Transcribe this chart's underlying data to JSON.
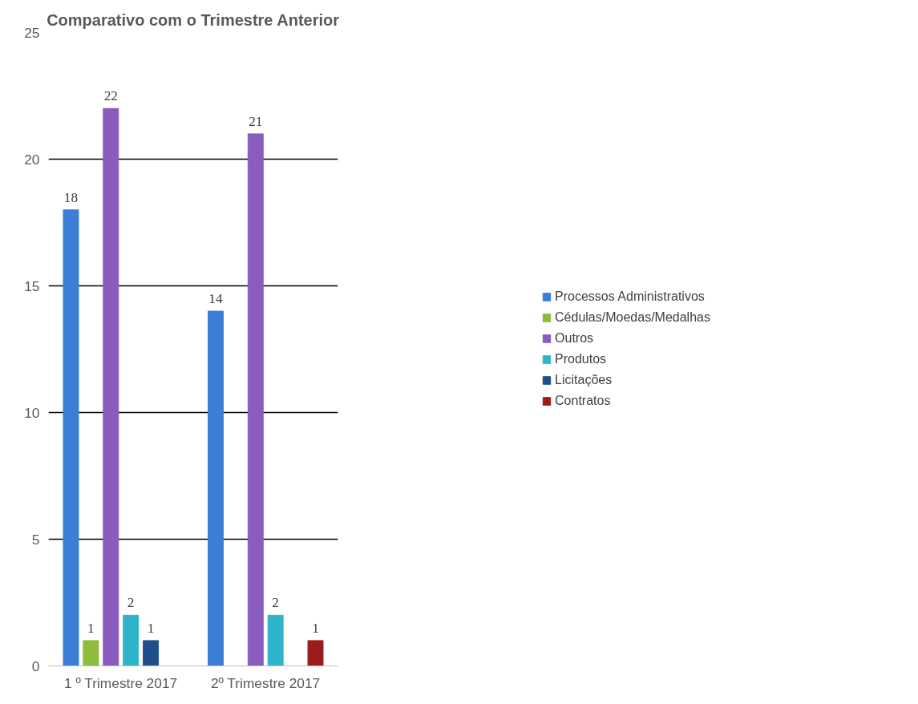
{
  "chart_data": {
    "type": "bar",
    "title": "Comparativo com o Trimestre Anterior",
    "categories": [
      "1 º Trimestre 2017",
      "2º Trimestre 2017"
    ],
    "series": [
      {
        "name": "Processos Administrativos",
        "color": "#3a7fd5",
        "values": [
          18,
          14
        ]
      },
      {
        "name": "Cédulas/Moedas/Medalhas",
        "color": "#8fbc3a",
        "values": [
          1,
          null
        ]
      },
      {
        "name": "Outros",
        "color": "#8a5cbf",
        "values": [
          22,
          21
        ]
      },
      {
        "name": "Produtos",
        "color": "#2fb3c9",
        "values": [
          2,
          2
        ]
      },
      {
        "name": "Licitações",
        "color": "#1f4e8c",
        "values": [
          1,
          null
        ]
      },
      {
        "name": "Contratos",
        "color": "#9b1c1c",
        "values": [
          null,
          1
        ]
      }
    ],
    "ylim": [
      0,
      25
    ],
    "yticks": [
      0,
      5,
      10,
      15,
      20,
      25
    ],
    "grid": "y",
    "legend": "right",
    "data_labels": true
  }
}
